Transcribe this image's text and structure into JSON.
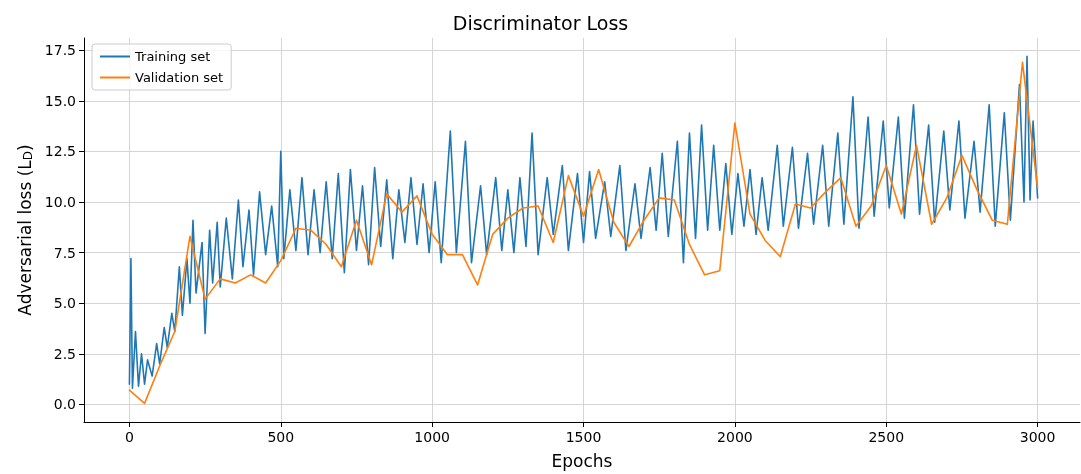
{
  "chart_data": {
    "type": "line",
    "title": "Discriminator Loss",
    "xlabel": "Epochs",
    "ylabel": "Adversarial loss (L$_{D}$)",
    "xlim": [
      -150,
      3140
    ],
    "xticks": [
      0,
      500,
      1000,
      1500,
      2000,
      2500,
      3000
    ],
    "ylim": [
      -0.87,
      18.1
    ],
    "yticks": [
      {
        "value": 0,
        "label": "0.0"
      },
      2.5,
      {
        "value": 5,
        "label": "5.0"
      },
      7.5,
      {
        "value": 10,
        "label": "10.0"
      },
      12.5,
      {
        "value": 15,
        "label": "15.0"
      },
      17.5
    ],
    "grid": true,
    "legend": "top left",
    "marker": "none",
    "line_style": "solid",
    "series": [
      {
        "name": "Training set",
        "color": "#1f77b4",
        "x": [
          0,
          5,
          10,
          20,
          30,
          40,
          50,
          60,
          75,
          90,
          100,
          115,
          125,
          140,
          150,
          165,
          175,
          190,
          200,
          210,
          220,
          240,
          250,
          265,
          275,
          290,
          300,
          320,
          340,
          360,
          375,
          395,
          410,
          430,
          450,
          470,
          490,
          500,
          510,
          530,
          550,
          570,
          590,
          610,
          630,
          650,
          670,
          690,
          710,
          730,
          750,
          770,
          790,
          810,
          830,
          850,
          870,
          890,
          910,
          930,
          950,
          970,
          990,
          1010,
          1030,
          1060,
          1080,
          1110,
          1130,
          1160,
          1180,
          1210,
          1230,
          1250,
          1270,
          1290,
          1310,
          1330,
          1350,
          1380,
          1400,
          1430,
          1450,
          1480,
          1500,
          1520,
          1540,
          1570,
          1590,
          1620,
          1640,
          1670,
          1690,
          1720,
          1740,
          1760,
          1780,
          1810,
          1830,
          1850,
          1870,
          1890,
          1910,
          1930,
          1950,
          1970,
          1990,
          2010,
          2030,
          2050,
          2070,
          2090,
          2110,
          2140,
          2160,
          2190,
          2210,
          2240,
          2260,
          2290,
          2310,
          2340,
          2360,
          2390,
          2410,
          2440,
          2460,
          2490,
          2510,
          2540,
          2560,
          2590,
          2610,
          2640,
          2660,
          2690,
          2710,
          2740,
          2760,
          2790,
          2810,
          2840,
          2860,
          2890,
          2910,
          2940,
          2955,
          2965,
          2975,
          2985,
          3000
        ],
        "values": [
          1.0,
          7.2,
          0.8,
          3.6,
          0.9,
          2.5,
          1.0,
          2.2,
          1.4,
          3.0,
          2.0,
          3.8,
          2.8,
          4.5,
          3.6,
          6.8,
          4.4,
          7.2,
          5.0,
          9.1,
          5.5,
          8.0,
          3.5,
          8.6,
          6.0,
          9.0,
          5.8,
          9.2,
          6.2,
          10.1,
          6.8,
          9.6,
          6.4,
          10.5,
          7.4,
          9.8,
          6.8,
          12.5,
          7.2,
          10.6,
          7.6,
          11.2,
          7.4,
          10.6,
          7.5,
          11.0,
          7.2,
          11.4,
          6.5,
          11.6,
          7.6,
          10.8,
          6.9,
          11.7,
          7.8,
          11.1,
          7.2,
          10.6,
          8.0,
          11.2,
          7.9,
          10.9,
          7.5,
          11.0,
          7.0,
          13.5,
          7.5,
          13.0,
          7.0,
          10.8,
          7.4,
          11.2,
          7.6,
          10.6,
          7.5,
          11.2,
          7.8,
          13.4,
          7.4,
          11.2,
          8.4,
          11.8,
          7.6,
          11.4,
          8.0,
          11.5,
          8.2,
          11.0,
          8.3,
          11.8,
          7.6,
          10.9,
          8.2,
          11.7,
          8.6,
          12.4,
          8.3,
          13.0,
          7.0,
          13.4,
          8.2,
          13.8,
          8.6,
          12.8,
          8.6,
          11.9,
          8.4,
          11.4,
          8.8,
          11.6,
          8.4,
          11.2,
          8.6,
          12.8,
          8.8,
          12.7,
          8.7,
          12.4,
          8.9,
          12.8,
          8.8,
          13.4,
          8.9,
          15.2,
          8.7,
          14.2,
          9.3,
          14.0,
          9.7,
          14.2,
          9.2,
          14.8,
          9.4,
          13.8,
          9.0,
          13.5,
          9.6,
          14.0,
          9.2,
          13.0,
          9.5,
          14.8,
          8.8,
          14.4,
          9.1,
          15.8,
          10.0,
          17.2,
          10.1,
          14.0,
          10.2
        ]
      },
      {
        "name": "Validation set",
        "color": "#ff7f0e",
        "x": [
          0,
          50,
          100,
          150,
          200,
          250,
          300,
          350,
          400,
          450,
          500,
          550,
          600,
          650,
          700,
          750,
          800,
          850,
          900,
          950,
          1000,
          1050,
          1100,
          1150,
          1200,
          1250,
          1300,
          1350,
          1400,
          1450,
          1500,
          1550,
          1600,
          1650,
          1700,
          1750,
          1800,
          1850,
          1900,
          1950,
          2000,
          2050,
          2100,
          2150,
          2200,
          2250,
          2300,
          2350,
          2400,
          2450,
          2500,
          2550,
          2600,
          2650,
          2700,
          2750,
          2800,
          2850,
          2900,
          2950,
          3000
        ],
        "values": [
          0.7,
          0.05,
          1.9,
          3.6,
          8.3,
          5.2,
          6.2,
          6.0,
          6.4,
          6.0,
          7.1,
          8.7,
          8.6,
          7.9,
          6.8,
          9.1,
          6.9,
          10.4,
          9.5,
          10.3,
          8.4,
          7.4,
          7.4,
          5.9,
          8.4,
          9.2,
          9.7,
          9.8,
          8.0,
          11.3,
          9.3,
          11.6,
          9.0,
          7.8,
          9.1,
          10.2,
          10.1,
          7.9,
          6.4,
          6.6,
          13.9,
          9.4,
          8.1,
          7.3,
          9.9,
          9.7,
          10.5,
          11.2,
          8.8,
          9.8,
          11.8,
          9.4,
          12.8,
          8.9,
          10.2,
          12.3,
          10.6,
          9.1,
          8.9,
          16.9,
          10.7
        ]
      }
    ]
  }
}
